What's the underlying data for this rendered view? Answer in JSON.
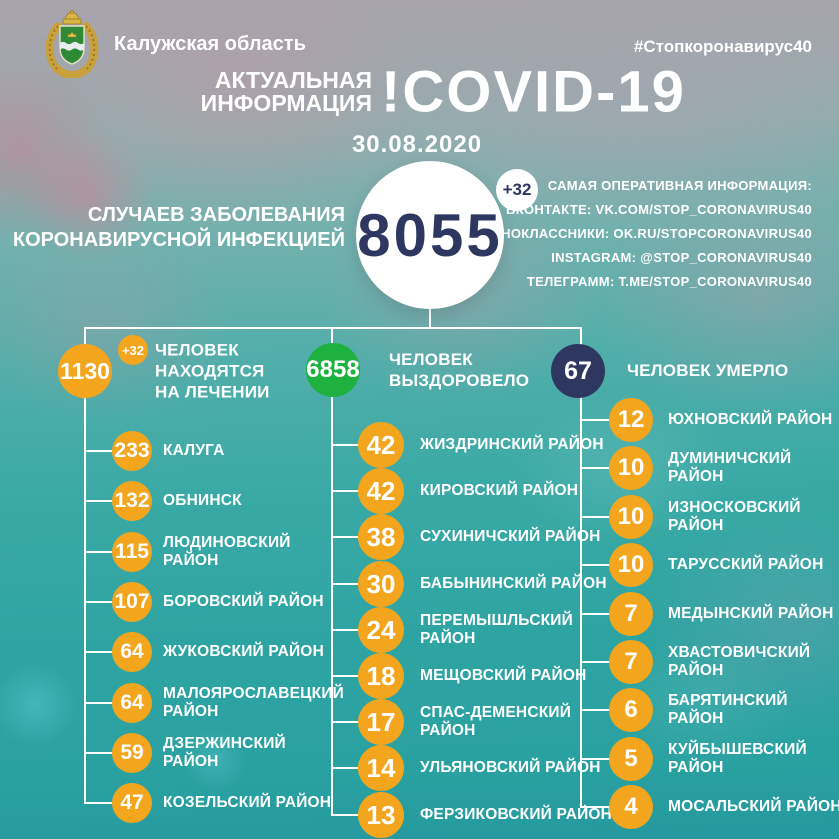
{
  "header": {
    "region": "Калужская область",
    "hashtag": "#Стопкоронавирус40",
    "arms_icon": "kaluga-oblast-coat-of-arms"
  },
  "title": {
    "small": "АКТУАЛЬНАЯ\nИНФОРМАЦИЯ",
    "main": "!COVID-19",
    "date": "30.08.2020"
  },
  "total": {
    "value": "8055",
    "delta": "+32",
    "label": "СЛУЧАЕВ ЗАБОЛЕВАНИЯ\nКОРОНАВИРУСНОЙ ИНФЕКЦИЕЙ"
  },
  "social": {
    "heading": "САМАЯ ОПЕРАТИВНАЯ ИНФОРМАЦИЯ:",
    "lines": [
      "ВКОНТАКТЕ: VK.COM/STOP_CORONAVIRUS40",
      "ОДНОКЛАССНИКИ: OK.RU/STOPCORONAVIRUS40",
      "INSTAGRAM: @STOP_CORONAVIRUS40",
      "ТЕЛЕГРАММ: T.ME/STOP_CORONAVIRUS40"
    ]
  },
  "stats": [
    {
      "value": "1130",
      "delta": "+32",
      "label": "ЧЕЛОВЕК\nНАХОДЯТСЯ\nНА ЛЕЧЕНИИ",
      "color": "#f3a51e"
    },
    {
      "value": "6858",
      "label": "ЧЕЛОВЕК\nВЫЗДОРОВЕЛО",
      "color": "#1eb13f"
    },
    {
      "value": "67",
      "label": "ЧЕЛОВЕК УМЕРЛО",
      "color": "#2d3760"
    }
  ],
  "columns": [
    {
      "items": [
        {
          "value": "233",
          "label": "КАЛУГА"
        },
        {
          "value": "132",
          "label": "ОБНИНСК"
        },
        {
          "value": "115",
          "label": "ЛЮДИНОВСКИЙ РАЙОН"
        },
        {
          "value": "107",
          "label": "БОРОВСКИЙ РАЙОН"
        },
        {
          "value": "64",
          "label": "ЖУКОВСКИЙ РАЙОН"
        },
        {
          "value": "64",
          "label": "МАЛОЯРОСЛАВЕЦКИЙ\nРАЙОН"
        },
        {
          "value": "59",
          "label": "ДЗЕРЖИНСКИЙ РАЙОН"
        },
        {
          "value": "47",
          "label": "КОЗЕЛЬСКИЙ РАЙОН"
        }
      ]
    },
    {
      "items": [
        {
          "value": "42",
          "label": "ЖИЗДРИНСКИЙ РАЙОН"
        },
        {
          "value": "42",
          "label": "КИРОВСКИЙ РАЙОН"
        },
        {
          "value": "38",
          "label": "СУХИНИЧСКИЙ РАЙОН"
        },
        {
          "value": "30",
          "label": "БАБЫНИНСКИЙ РАЙОН"
        },
        {
          "value": "24",
          "label": "ПЕРЕМЫШЛЬСКИЙ\nРАЙОН"
        },
        {
          "value": "18",
          "label": "МЕЩОВСКИЙ РАЙОН"
        },
        {
          "value": "17",
          "label": "СПАС-ДЕМЕНСКИЙ\nРАЙОН"
        },
        {
          "value": "14",
          "label": "УЛЬЯНОВСКИЙ РАЙОН"
        },
        {
          "value": "13",
          "label": "ФЕРЗИКОВСКИЙ РАЙОН"
        }
      ]
    },
    {
      "items": [
        {
          "value": "12",
          "label": "ЮХНОВСКИЙ РАЙОН"
        },
        {
          "value": "10",
          "label": "ДУМИНИЧСКИЙ РАЙОН"
        },
        {
          "value": "10",
          "label": "ИЗНОСКОВСКИЙ РАЙОН"
        },
        {
          "value": "10",
          "label": "ТАРУССКИЙ РАЙОН"
        },
        {
          "value": "7",
          "label": "МЕДЫНСКИЙ РАЙОН"
        },
        {
          "value": "7",
          "label": "ХВАСТОВИЧСКИЙ РАЙОН"
        },
        {
          "value": "6",
          "label": "БАРЯТИНСКИЙ РАЙОН"
        },
        {
          "value": "5",
          "label": "КУЙБЫШЕВСКИЙ РАЙОН"
        },
        {
          "value": "4",
          "label": "МОСАЛЬСКИЙ РАЙОН"
        }
      ]
    }
  ],
  "colors": {
    "orange": "#f3a51e",
    "green": "#1eb13f",
    "navy": "#2d3760",
    "line": "#ffffff"
  }
}
